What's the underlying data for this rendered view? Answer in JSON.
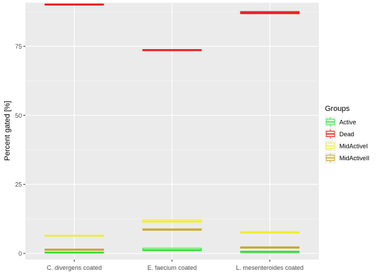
{
  "chart_data": {
    "type": "box",
    "ylabel": "Percent gated [%]",
    "xlabel": "",
    "ylim": [
      0,
      93
    ],
    "yticks": [
      0,
      25,
      50,
      75
    ],
    "y_tick_labels": [
      "0",
      "25",
      "50",
      "75"
    ],
    "categories": [
      "C. divergens coated",
      "E. faecium coated",
      "L. mesenteroides coated"
    ],
    "grid": true,
    "legend": {
      "title": "Groups",
      "position": "right"
    },
    "series": [
      {
        "name": "Active",
        "color": "#33dd33",
        "fill": "#dfffe0",
        "values": [
          {
            "q1": 0.2,
            "median": 0.3,
            "q3": 0.5
          },
          {
            "q1": 1.0,
            "median": 1.2,
            "q3": 1.9
          },
          {
            "q1": 0.3,
            "median": 0.5,
            "q3": 0.8
          }
        ]
      },
      {
        "name": "Dead",
        "color": "#ee1111",
        "fill": "#ffdddd",
        "values": [
          {
            "q1": 89.9,
            "median": 90.1,
            "q3": 90.3
          },
          {
            "q1": 73.4,
            "median": 73.6,
            "q3": 73.8
          },
          {
            "q1": 86.8,
            "median": 87.1,
            "q3": 87.6
          }
        ]
      },
      {
        "name": "MidActiveI",
        "color": "#eeee33",
        "fill": "#ffffdd",
        "values": [
          {
            "q1": 6.2,
            "median": 6.4,
            "q3": 6.6
          },
          {
            "q1": 11.2,
            "median": 11.7,
            "q3": 12.3
          },
          {
            "q1": 7.3,
            "median": 7.6,
            "q3": 7.9
          }
        ]
      },
      {
        "name": "MidActiveII",
        "color": "#c8a82a",
        "fill": "#fff3cc",
        "values": [
          {
            "q1": 1.1,
            "median": 1.3,
            "q3": 1.6
          },
          {
            "q1": 8.4,
            "median": 8.6,
            "q3": 8.9
          },
          {
            "q1": 1.9,
            "median": 2.1,
            "q3": 2.4
          }
        ]
      }
    ]
  }
}
